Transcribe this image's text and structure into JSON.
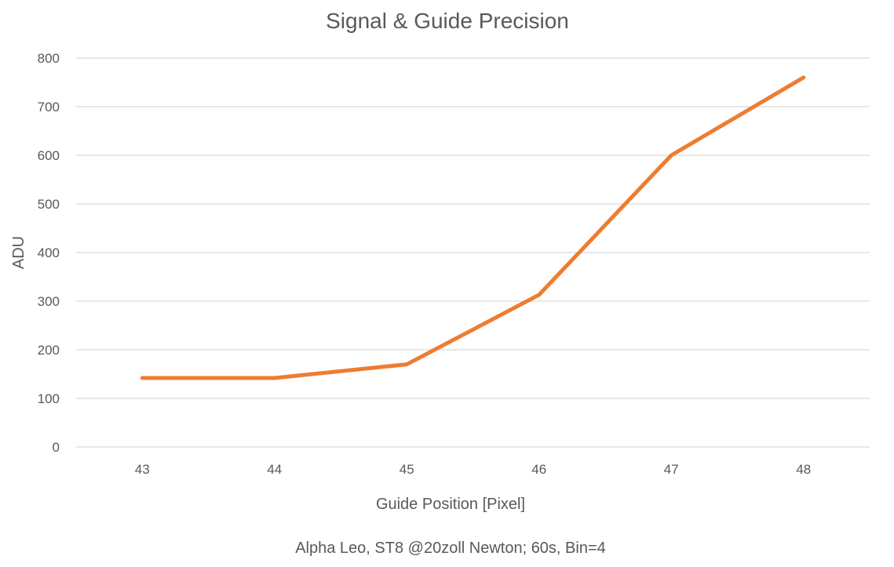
{
  "colors": {
    "series": "#ED7D31",
    "grid": "#D9D9D9",
    "text": "#595959"
  },
  "chart_data": {
    "type": "line",
    "title": "Signal & Guide Precision",
    "xlabel": "Guide Position [Pixel]",
    "ylabel": "ADU",
    "footer": "Alpha Leo, ST8 @20zoll Newton; 60s, Bin=4",
    "categories": [
      "43",
      "44",
      "45",
      "46",
      "47",
      "48"
    ],
    "series": [
      {
        "values": [
          142,
          142,
          170,
          313,
          600,
          760
        ],
        "color": "#ED7D31"
      }
    ],
    "ylim": [
      0,
      800
    ],
    "yticks": [
      "0",
      "100",
      "200",
      "300",
      "400",
      "500",
      "600",
      "700",
      "800"
    ],
    "grid": true,
    "legend": "none"
  }
}
